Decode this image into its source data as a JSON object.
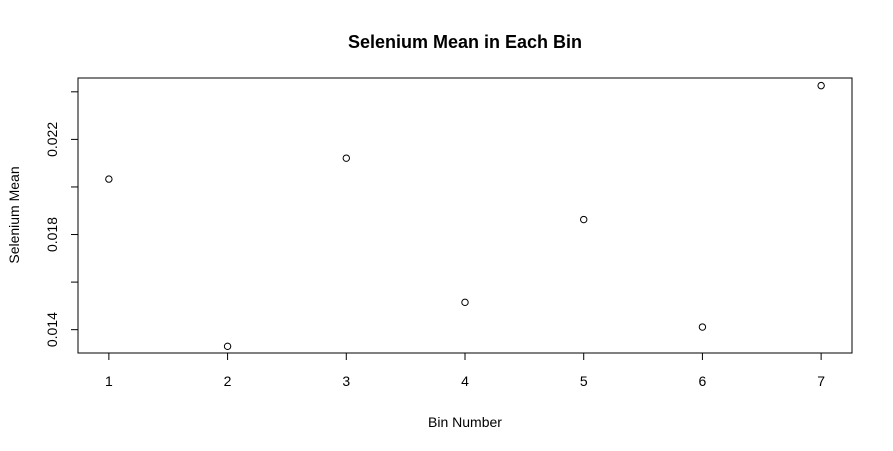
{
  "chart_data": {
    "type": "scatter",
    "title": "Selenium Mean in Each Bin",
    "xlabel": "Bin Number",
    "ylabel": "Selenium Mean",
    "x": [
      1,
      2,
      3,
      4,
      5,
      6,
      7
    ],
    "y": [
      0.02033,
      0.0133,
      0.02121,
      0.01515,
      0.01863,
      0.01411,
      0.02426
    ],
    "xlim": [
      0.74,
      7.26
    ],
    "ylim": [
      0.013019,
      0.024581
    ],
    "xticks": [
      1,
      2,
      3,
      4,
      5,
      6,
      7
    ],
    "xtick_labels": [
      "1",
      "2",
      "3",
      "4",
      "5",
      "6",
      "7"
    ],
    "yticks": [
      0.014,
      0.016,
      0.018,
      0.02,
      0.022,
      0.024
    ],
    "ytick_labels": [
      "0.014",
      "",
      "0.018",
      "",
      "0.022",
      ""
    ],
    "grid": false,
    "point_style": "open-circle",
    "colors": {
      "points": "#000000",
      "axes": "#000000"
    }
  }
}
